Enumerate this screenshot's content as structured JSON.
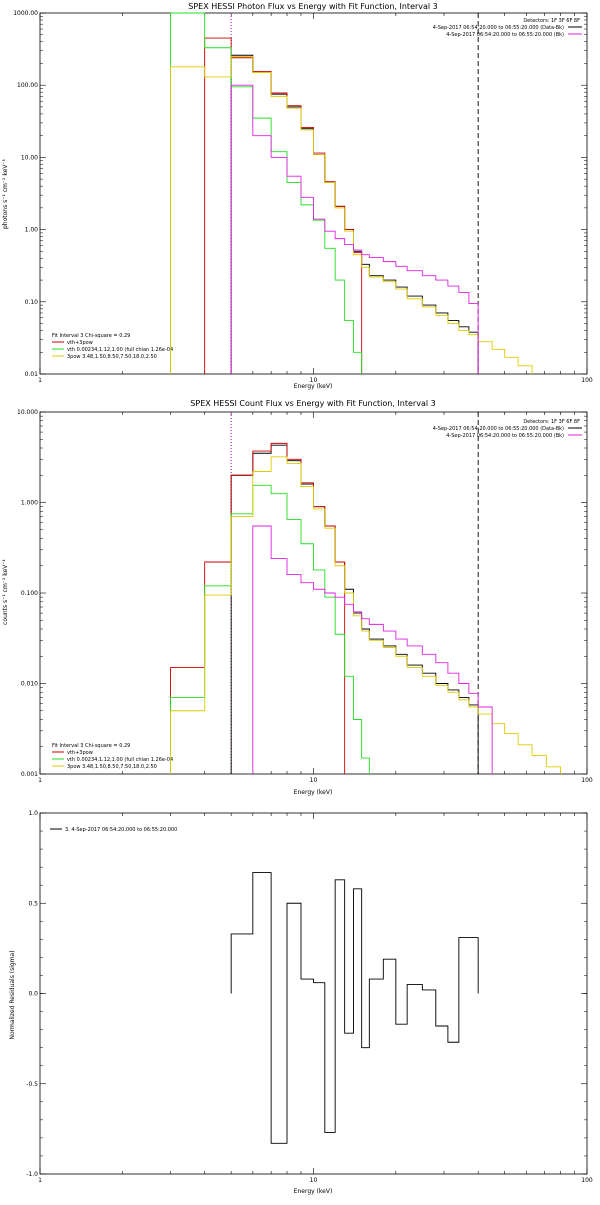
{
  "colors": {
    "black": "#000000",
    "red": "#cc0000",
    "green": "#22dd22",
    "yellow": "#ddcc00",
    "magenta": "#dd22dd"
  },
  "chart_data": [
    {
      "type": "line",
      "title": "SPEX HESSI Photon Flux vs Energy with Fit Function, Interval 3",
      "xlabel": "Energy (keV)",
      "ylabel": "photons s⁻¹ cm⁻² keV⁻¹",
      "xscale": "log",
      "yscale": "log",
      "xlim": [
        1,
        100
      ],
      "ylim": [
        0.01,
        1000
      ],
      "xticks": [
        "1",
        "10",
        "100"
      ],
      "yticks": [
        "0.01",
        "0.10",
        "1.00",
        "10.00",
        "100.00",
        "1000.00"
      ],
      "vlines": [
        {
          "x": 5.0,
          "style": "dotted",
          "color": "#000000"
        },
        {
          "x": 5.0,
          "style": "dotted",
          "color": "#dd22dd"
        },
        {
          "x": 40.0,
          "style": "dashed",
          "color": "#000000"
        }
      ],
      "info_text": [
        "Detectors: 1F 3F 6F 8F",
        "4-Sep-2017 06:54:20.000 to 06:55:20.000 (Data-Bk)",
        "4-Sep-2017 06:54:20.000 to 06:55:20.000 (Bk)"
      ],
      "info_series": [
        "black",
        "magenta"
      ],
      "fit_text": [
        "Fit Interval 3   Chi-square = 0.29",
        "vth+3pow",
        "vth 0.00234,1.12,1.00  (full chian 1.26e-04",
        "3pow 3.48,1.50,8.50,7.50,18.0,2.50"
      ],
      "fit_series": [
        "",
        "red",
        "green",
        "yellow"
      ],
      "edges": [
        3.0,
        4.0,
        5.0,
        6.0,
        7.0,
        8.0,
        9.0,
        10.0,
        11.0,
        12.0,
        13.0,
        14.0,
        15.0,
        16.0,
        18.0,
        20.0,
        22.0,
        25.0,
        28.0,
        31.0,
        34.0,
        37.0,
        40.0,
        45.0,
        50.0,
        56.0,
        63.0
      ],
      "series": [
        {
          "name": "",
          "color": "#000000",
          "values": [
            null,
            null,
            260,
            150,
            75,
            50,
            25,
            11,
            4.5,
            2.1,
            1.0,
            0.5,
            0.33,
            0.23,
            0.2,
            0.16,
            0.12,
            0.09,
            0.07,
            0.055,
            0.045,
            0.038,
            null,
            null,
            null,
            null
          ]
        },
        {
          "name": "",
          "color": "#cc0000",
          "values": [
            null,
            450,
            240,
            155,
            78,
            52,
            26,
            11.5,
            4.6,
            2.1,
            1.0,
            0.48,
            null,
            null,
            null,
            null,
            null,
            null,
            null,
            null,
            null,
            null,
            null,
            null,
            null,
            null
          ]
        },
        {
          "name": "",
          "color": "#22dd22",
          "values": [
            1200,
            330,
            95,
            35,
            12,
            4.5,
            2.2,
            1.35,
            0.55,
            0.2,
            0.055,
            0.02,
            null,
            null,
            null,
            null,
            null,
            null,
            null,
            null,
            null,
            null,
            null,
            null,
            null,
            null
          ]
        },
        {
          "name": "",
          "color": "#ddcc00",
          "values": [
            180,
            130,
            250,
            150,
            70,
            48,
            24,
            11,
            4.5,
            2.0,
            0.95,
            0.45,
            0.3,
            0.22,
            0.19,
            0.15,
            0.11,
            0.085,
            0.065,
            0.05,
            0.04,
            0.035,
            0.028,
            0.022,
            0.017,
            0.013
          ]
        },
        {
          "name": "",
          "color": "#dd22dd",
          "values": [
            null,
            null,
            100,
            20,
            10,
            5.5,
            2.8,
            1.4,
            0.95,
            0.75,
            0.62,
            0.52,
            0.45,
            0.41,
            0.36,
            0.31,
            0.27,
            0.23,
            0.2,
            0.165,
            0.135,
            0.095,
            null,
            null,
            null,
            null
          ]
        }
      ]
    },
    {
      "type": "line",
      "title": "SPEX HESSI Count Flux vs Energy with Fit Function, Interval 3",
      "xlabel": "Energy (keV)",
      "ylabel": "counts s⁻¹ cm⁻² keV⁻¹",
      "xscale": "log",
      "yscale": "log",
      "xlim": [
        1,
        100
      ],
      "ylim": [
        0.001,
        10
      ],
      "xticks": [
        "1",
        "10",
        "100"
      ],
      "yticks": [
        "0.001",
        "0.010",
        "0.100",
        "1.000",
        "10.000"
      ],
      "vlines": [
        {
          "x": 5.0,
          "style": "dotted",
          "color": "#000000"
        },
        {
          "x": 5.0,
          "style": "dotted",
          "color": "#dd22dd"
        },
        {
          "x": 40.0,
          "style": "dashed",
          "color": "#000000"
        }
      ],
      "info_text": [
        "Detectors: 1F 3F 6F 8F",
        "4-Sep-2017 06:54:20.000 to 06:55:20.000 (Data-Bk)",
        "4-Sep-2017 06:54:20.000 to 06:55:20.000 (Bk)"
      ],
      "info_series": [
        "black",
        "magenta"
      ],
      "fit_text": [
        "Fit Interval 3   Chi-square = 0.29",
        "vth+3pow",
        "vth 0.00234,1.12,1.00  (full chian 1.26e-04",
        "3pow 3.48,1.50,8.50,7.50,18.0,2.50"
      ],
      "fit_series": [
        "",
        "red",
        "green",
        "yellow"
      ],
      "edges": [
        3.0,
        4.0,
        5.0,
        6.0,
        7.0,
        8.0,
        9.0,
        10.0,
        11.0,
        12.0,
        13.0,
        14.0,
        15.0,
        16.0,
        18.0,
        20.0,
        22.0,
        25.0,
        28.0,
        31.0,
        34.0,
        37.0,
        40.0,
        45.0,
        50.0,
        56.0,
        63.0,
        71.0,
        80.0
      ],
      "series": [
        {
          "name": "",
          "color": "#000000",
          "values": [
            null,
            null,
            2.0,
            3.5,
            4.3,
            2.9,
            1.6,
            0.9,
            0.55,
            0.22,
            0.11,
            0.06,
            0.04,
            0.031,
            0.026,
            0.021,
            0.016,
            0.013,
            0.01,
            0.0085,
            0.007,
            0.0058,
            null,
            null,
            null,
            null,
            null,
            null
          ]
        },
        {
          "name": "",
          "color": "#cc0000",
          "values": [
            0.015,
            0.22,
            2.0,
            3.7,
            4.5,
            3.0,
            1.65,
            0.9,
            0.55,
            0.22,
            null,
            null,
            null,
            null,
            null,
            null,
            null,
            null,
            null,
            null,
            null,
            null,
            null,
            null,
            null,
            null,
            null,
            null
          ]
        },
        {
          "name": "",
          "color": "#22dd22",
          "values": [
            0.007,
            0.12,
            0.75,
            1.55,
            1.25,
            0.65,
            0.35,
            0.18,
            0.09,
            0.035,
            0.012,
            0.004,
            0.0015,
            null,
            null,
            null,
            null,
            null,
            null,
            null,
            null,
            null,
            null,
            null,
            null,
            null,
            null,
            null
          ]
        },
        {
          "name": "",
          "color": "#ddcc00",
          "values": [
            0.005,
            0.095,
            0.7,
            2.2,
            3.2,
            2.7,
            1.5,
            0.85,
            0.52,
            0.2,
            0.1,
            0.056,
            0.038,
            0.03,
            0.025,
            0.02,
            0.015,
            0.012,
            0.0095,
            0.008,
            0.0066,
            0.0055,
            0.0046,
            0.0036,
            0.0028,
            0.0021,
            0.0016,
            0.0012
          ]
        },
        {
          "name": "",
          "color": "#dd22dd",
          "values": [
            null,
            null,
            null,
            0.55,
            0.24,
            0.16,
            0.13,
            0.11,
            0.1,
            0.09,
            0.075,
            0.062,
            0.052,
            0.045,
            0.038,
            0.031,
            0.026,
            0.021,
            0.017,
            0.013,
            0.01,
            0.0078,
            0.0055,
            null,
            null,
            null,
            null,
            null
          ]
        }
      ]
    },
    {
      "type": "line",
      "title": "",
      "xlabel": "Energy (keV)",
      "ylabel": "Normalized Residuals (sigma)",
      "xscale": "log",
      "yscale": "linear",
      "xlim": [
        1,
        100
      ],
      "ylim": [
        -1.0,
        1.0
      ],
      "xticks": [
        "1",
        "10",
        "100"
      ],
      "yticks": [
        "-1.0",
        "-0.5",
        "0.0",
        "0.5",
        "1.0"
      ],
      "legend_text": "3.  4-Sep-2017 06:54:20.000 to 06:55:20.000",
      "edges": [
        5.0,
        6.0,
        7.0,
        8.0,
        9.0,
        10.0,
        11.0,
        12.0,
        13.0,
        14.0,
        15.0,
        16.0,
        18.0,
        20.0,
        22.0,
        25.0,
        28.0,
        31.0,
        34.0,
        37.0,
        40.0
      ],
      "series": [
        {
          "name": "3.  4-Sep-2017 06:54:20.000 to 06:55:20.000",
          "color": "#000000",
          "values": [
            0.33,
            0.67,
            -0.83,
            0.5,
            0.08,
            0.06,
            -0.77,
            0.63,
            -0.22,
            0.58,
            -0.3,
            0.08,
            0.19,
            -0.17,
            0.05,
            0.02,
            -0.18,
            -0.27,
            0.31,
            0.31
          ]
        }
      ]
    }
  ]
}
